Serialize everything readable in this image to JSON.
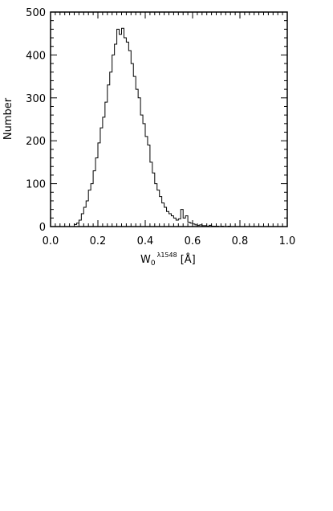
{
  "chart_data": {
    "type": "histogram",
    "title": "",
    "xlabel": {
      "main": "W",
      "subscript": "0",
      "superscript": "λ1548",
      "unit": "[Å]"
    },
    "ylabel": "Number",
    "xlim": [
      0.0,
      1.0
    ],
    "ylim": [
      0,
      500
    ],
    "x_ticks": [
      0.0,
      0.2,
      0.4,
      0.6,
      0.8,
      1.0
    ],
    "x_tick_labels": [
      "0.0",
      "0.2",
      "0.4",
      "0.6",
      "0.8",
      "1.0"
    ],
    "y_ticks": [
      0,
      100,
      200,
      300,
      400,
      500
    ],
    "y_tick_labels": [
      "0",
      "100",
      "200",
      "300",
      "400",
      "500"
    ],
    "grid": false,
    "bin_width": 0.01,
    "bin_start": 0.1,
    "counts": [
      5,
      8,
      15,
      30,
      45,
      60,
      85,
      100,
      130,
      160,
      195,
      230,
      255,
      290,
      330,
      360,
      400,
      425,
      460,
      448,
      462,
      440,
      430,
      410,
      380,
      350,
      320,
      300,
      260,
      240,
      210,
      190,
      150,
      125,
      100,
      85,
      70,
      55,
      45,
      35,
      30,
      25,
      20,
      15,
      18,
      40,
      20,
      25,
      10,
      8,
      6,
      4,
      3,
      4,
      2,
      2,
      1,
      3,
      1,
      1,
      1,
      0,
      1,
      0,
      0,
      1,
      0,
      0,
      0,
      0
    ],
    "stroke_color": "#000000"
  }
}
